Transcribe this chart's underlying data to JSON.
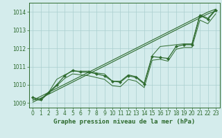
{
  "x": [
    0,
    1,
    2,
    3,
    4,
    5,
    6,
    7,
    8,
    9,
    10,
    11,
    12,
    13,
    14,
    15,
    16,
    17,
    18,
    19,
    20,
    21,
    22,
    23
  ],
  "line_main": [
    1009.3,
    1009.2,
    1009.6,
    1010.0,
    1010.5,
    1010.8,
    1010.7,
    1010.7,
    1010.6,
    1010.5,
    1010.2,
    1010.15,
    1010.5,
    1010.4,
    1010.05,
    1011.55,
    1011.5,
    1011.45,
    1012.1,
    1012.2,
    1012.2,
    1013.8,
    1013.6,
    1014.1
  ],
  "line_upper": [
    1009.3,
    1009.2,
    1009.6,
    1010.3,
    1010.55,
    1010.75,
    1010.75,
    1010.75,
    1010.65,
    1010.6,
    1010.2,
    1010.2,
    1010.55,
    1010.45,
    1010.1,
    1011.6,
    1012.1,
    1012.15,
    1012.2,
    1012.25,
    1012.25,
    1013.85,
    1013.65,
    1014.15
  ],
  "line_lower": [
    1009.2,
    1009.15,
    1009.55,
    1009.95,
    1010.35,
    1010.6,
    1010.55,
    1010.5,
    1010.4,
    1010.3,
    1009.95,
    1009.9,
    1010.3,
    1010.2,
    1009.85,
    1011.35,
    1011.4,
    1011.3,
    1011.95,
    1012.05,
    1012.05,
    1013.55,
    1013.35,
    1013.9
  ],
  "line_trend1": [
    1009.15,
    1009.37,
    1009.59,
    1009.81,
    1010.03,
    1010.25,
    1010.47,
    1010.69,
    1010.91,
    1011.13,
    1011.35,
    1011.57,
    1011.79,
    1012.01,
    1012.23,
    1012.45,
    1012.67,
    1012.89,
    1013.11,
    1013.33,
    1013.55,
    1013.77,
    1013.99,
    1014.15
  ],
  "line_trend2": [
    1009.05,
    1009.27,
    1009.49,
    1009.71,
    1009.93,
    1010.15,
    1010.37,
    1010.59,
    1010.81,
    1011.03,
    1011.25,
    1011.47,
    1011.69,
    1011.91,
    1012.13,
    1012.35,
    1012.57,
    1012.79,
    1013.01,
    1013.23,
    1013.45,
    1013.67,
    1013.89,
    1014.05
  ],
  "bg_color": "#d4ecec",
  "grid_major_color": "#aacece",
  "grid_minor_color": "#c4e0e0",
  "line_color": "#2d6a2d",
  "xlabel": "Graphe pression niveau de la mer (hPa)",
  "ylim": [
    1008.75,
    1014.5
  ],
  "yticks": [
    1009,
    1010,
    1011,
    1012,
    1013,
    1014
  ],
  "xticks": [
    0,
    1,
    2,
    3,
    4,
    5,
    6,
    7,
    8,
    9,
    10,
    11,
    12,
    13,
    14,
    15,
    16,
    17,
    18,
    19,
    20,
    21,
    22,
    23
  ]
}
